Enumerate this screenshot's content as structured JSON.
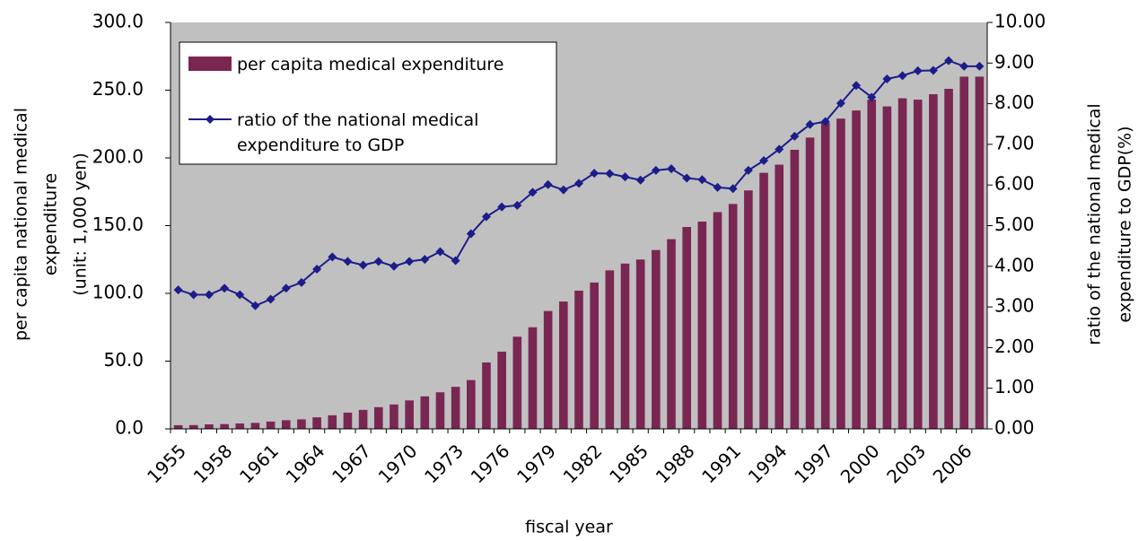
{
  "chart_data": {
    "type": "bar-line",
    "categories": [
      "1955",
      null,
      null,
      "1958",
      null,
      null,
      "1961",
      null,
      null,
      "1964",
      null,
      null,
      "1967",
      null,
      null,
      "1970",
      null,
      null,
      "1973",
      null,
      null,
      "1976",
      null,
      null,
      "1979",
      null,
      null,
      "1982",
      null,
      null,
      "1985",
      null,
      null,
      "1988",
      null,
      null,
      "1991",
      null,
      null,
      "1994",
      null,
      null,
      "1997",
      null,
      null,
      "2000",
      null,
      null,
      "2003",
      null,
      null,
      "2006",
      null
    ],
    "series": [
      {
        "name": "per capita medical expenditure",
        "type": "bar",
        "color": "#7a2652",
        "values": [
          2.7,
          2.8,
          3.3,
          3.5,
          4.0,
          4.4,
          5.4,
          6.4,
          7.0,
          8.5,
          10.0,
          12.0,
          14.0,
          16.0,
          18.0,
          21.0,
          24.0,
          27.0,
          31.0,
          36.0,
          49.0,
          57.0,
          68.0,
          75.0,
          87.0,
          94.0,
          102.0,
          108.0,
          117.0,
          122.0,
          125.0,
          132.0,
          140.0,
          149.0,
          153.0,
          160.0,
          166.0,
          176.0,
          189.0,
          195.0,
          206.0,
          215.0,
          226.0,
          229.0,
          235.0,
          243.0,
          238.0,
          244.0,
          243.0,
          247.0,
          251.0,
          260.0,
          260.0
        ]
      },
      {
        "name": "ratio of the national medical expenditure to GDP",
        "type": "line",
        "axis": "y2",
        "color": "#1c1c8a",
        "values": [
          3.42,
          3.3,
          3.3,
          3.46,
          3.3,
          3.03,
          3.19,
          3.46,
          3.6,
          3.93,
          4.23,
          4.12,
          4.03,
          4.12,
          4.0,
          4.12,
          4.17,
          4.36,
          4.14,
          4.8,
          5.22,
          5.46,
          5.5,
          5.82,
          6.01,
          5.88,
          6.04,
          6.29,
          6.28,
          6.2,
          6.12,
          6.36,
          6.4,
          6.17,
          6.13,
          5.94,
          5.91,
          6.36,
          6.6,
          6.88,
          7.2,
          7.49,
          7.56,
          8.01,
          8.45,
          8.16,
          8.61,
          8.69,
          8.81,
          8.82,
          9.06,
          8.92,
          8.92
        ]
      }
    ],
    "ylim": [
      0,
      300
    ],
    "yticks": [
      {
        "value": 0,
        "label": "0.0"
      },
      {
        "value": 50,
        "label": "50.0"
      },
      {
        "value": 100,
        "label": "100.0"
      },
      {
        "value": 150,
        "label": "150.0"
      },
      {
        "value": 200,
        "label": "200.0"
      },
      {
        "value": 250,
        "label": "250.0"
      },
      {
        "value": 300,
        "label": "300.0"
      }
    ],
    "y2lim": [
      0,
      10
    ],
    "y2ticks": [
      {
        "value": 0,
        "label": "0.00"
      },
      {
        "value": 1,
        "label": "1.00"
      },
      {
        "value": 2,
        "label": "2.00"
      },
      {
        "value": 3,
        "label": "3.00"
      },
      {
        "value": 4,
        "label": "4.00"
      },
      {
        "value": 5,
        "label": "5.00"
      },
      {
        "value": 6,
        "label": "6.00"
      },
      {
        "value": 7,
        "label": "7.00"
      },
      {
        "value": 8,
        "label": "8.00"
      },
      {
        "value": 9,
        "label": "9.00"
      },
      {
        "value": 10,
        "label": "10.00"
      }
    ],
    "ylabel": [
      "per capita national medical",
      "expenditure",
      "(unit: 1,000 yen)"
    ],
    "y2label": [
      "ratio of the national medical",
      "expenditure to GDP(%)"
    ],
    "xlabel": "fiscal year",
    "plot_background": "#c0c0c0",
    "legend": "upper left"
  }
}
